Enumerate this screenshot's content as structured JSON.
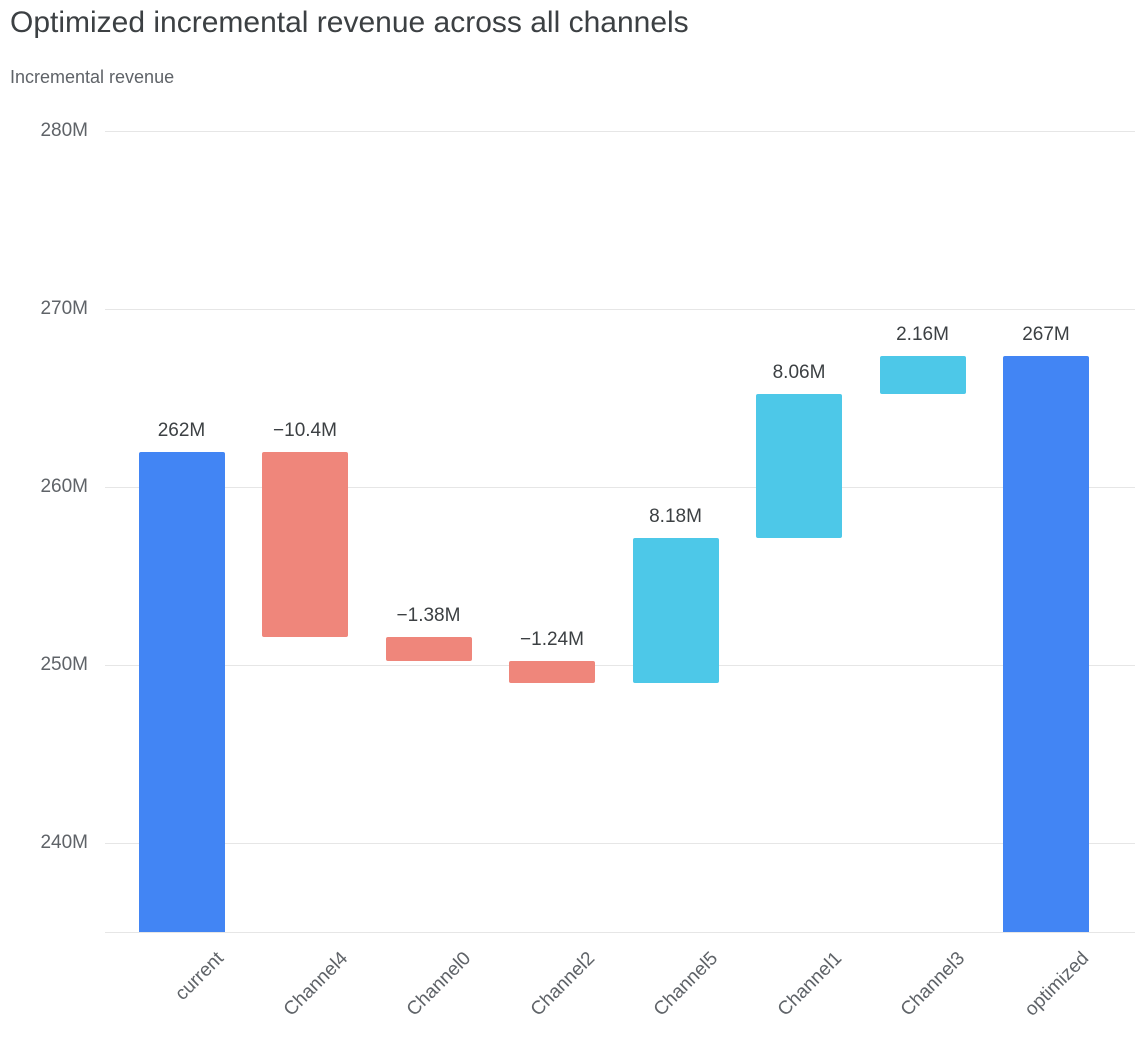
{
  "header": {
    "title": "Optimized incremental revenue across all channels",
    "subtitle": "Incremental revenue"
  },
  "chart_data": {
    "type": "bar",
    "subtype": "waterfall",
    "title": "Optimized incremental revenue across all channels",
    "xlabel": "",
    "ylabel": "Incremental revenue",
    "grid": true,
    "legend": "none",
    "ylim": [
      235,
      281.2
    ],
    "categories": [
      "current",
      "Channel4",
      "Channel0",
      "Channel2",
      "Channel5",
      "Channel1",
      "Channel3",
      "optimized"
    ],
    "values": [
      262,
      -10.4,
      -1.38,
      -1.24,
      8.18,
      8.06,
      2.16,
      267
    ],
    "y_axis": {
      "tick_values": [
        240,
        250,
        260,
        270,
        280
      ],
      "tick_labels": [
        "240M",
        "250M",
        "260M",
        "270M",
        "280M"
      ]
    },
    "colors": {
      "total": "#4285F4",
      "increase": "#4DC8E8",
      "decrease": "#EF867B"
    },
    "bars": [
      {
        "category": "current",
        "kind": "total",
        "start": 235,
        "end": 262,
        "value": 262,
        "label": "262M"
      },
      {
        "category": "Channel4",
        "kind": "decrease",
        "start": 262,
        "end": 251.6,
        "value": -10.4,
        "label": "−10.4M"
      },
      {
        "category": "Channel0",
        "kind": "decrease",
        "start": 251.6,
        "end": 250.22,
        "value": -1.38,
        "label": "−1.38M"
      },
      {
        "category": "Channel2",
        "kind": "decrease",
        "start": 250.22,
        "end": 248.98,
        "value": -1.24,
        "label": "−1.24M"
      },
      {
        "category": "Channel5",
        "kind": "increase",
        "start": 248.98,
        "end": 257.16,
        "value": 8.18,
        "label": "8.18M"
      },
      {
        "category": "Channel1",
        "kind": "increase",
        "start": 257.16,
        "end": 265.22,
        "value": 8.06,
        "label": "8.06M"
      },
      {
        "category": "Channel3",
        "kind": "increase",
        "start": 265.22,
        "end": 267.38,
        "value": 2.16,
        "label": "2.16M"
      },
      {
        "category": "optimized",
        "kind": "total",
        "start": 235,
        "end": 267.38,
        "value": 267,
        "label": "267M"
      }
    ]
  }
}
